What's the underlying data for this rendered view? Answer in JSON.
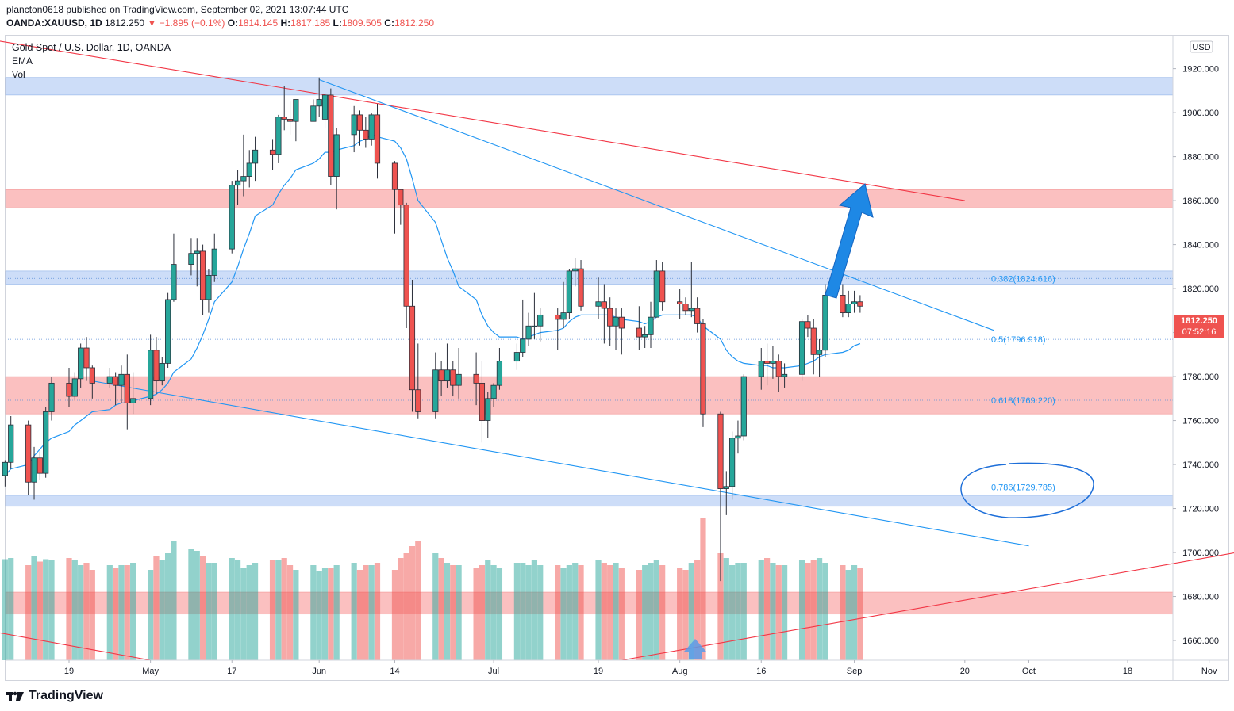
{
  "header": {
    "line1": "plancton0618 published on TradingView.com, September 02, 2021 13:07:44 UTC",
    "symbol": "OANDA:XAUUSD, 1D",
    "last": "1812.250",
    "change": "▼ −1.895 (−0.1%)",
    "o_label": "O:",
    "o": "1814.145",
    "h_label": "H:",
    "h": "1817.185",
    "l_label": "L:",
    "l": "1809.505",
    "c_label": "C:",
    "c": "1812.250"
  },
  "legend": {
    "title": "Gold Spot / U.S. Dollar, 1D, OANDA",
    "ema": "EMA",
    "vol": "Vol"
  },
  "price_tag": {
    "price": "1812.250",
    "countdown": "07:52:16"
  },
  "currency": "USD",
  "footer": {
    "brand": "TradingView"
  },
  "colors": {
    "up": "#26a69a",
    "down": "#ef5350",
    "ema": "#2196f3",
    "trend_red": "#f23645",
    "arrow": "#1e88e5"
  },
  "chart_data": {
    "type": "candlestick",
    "title": "Gold Spot / U.S. Dollar, 1D, OANDA",
    "y_axis": {
      "ticks": [
        1660,
        1680,
        1700,
        1720,
        1740,
        1760,
        1780,
        1800,
        1820,
        1840,
        1860,
        1880,
        1900,
        1920
      ],
      "tick_labels": [
        "1660.000",
        "1680.000",
        "1700.000",
        "1720.000",
        "1740.000",
        "1760.000",
        "1780.000",
        "1800.000",
        "1820.000",
        "1840.000",
        "1860.000",
        "1880.000",
        "1900.000",
        "1920.000"
      ],
      "ylim": [
        1651,
        1935
      ]
    },
    "x_axis": {
      "tick_labels": [
        "19",
        "May",
        "17",
        "Jun",
        "14",
        "Jul",
        "19",
        "Aug",
        "16",
        "Sep",
        "20",
        "Oct",
        "18",
        "Nov"
      ],
      "tick_dates": [
        "2021-04-19",
        "2021-05-03",
        "2021-05-17",
        "2021-06-01",
        "2021-06-14",
        "2021-07-01",
        "2021-07-19",
        "2021-08-02",
        "2021-08-16",
        "2021-09-01",
        "2021-09-20",
        "2021-10-01",
        "2021-10-18",
        "2021-11-01"
      ]
    },
    "candles": [
      {
        "date": "2021-04-08",
        "o": 1735,
        "h": 1742,
        "l": 1730,
        "c": 1741
      },
      {
        "date": "2021-04-09",
        "o": 1741,
        "h": 1762,
        "l": 1738,
        "c": 1758
      },
      {
        "date": "2021-04-12",
        "o": 1758,
        "h": 1760,
        "l": 1726,
        "c": 1732
      },
      {
        "date": "2021-04-13",
        "o": 1732,
        "h": 1748,
        "l": 1724,
        "c": 1743
      },
      {
        "date": "2021-04-14",
        "o": 1743,
        "h": 1746,
        "l": 1733,
        "c": 1736
      },
      {
        "date": "2021-04-15",
        "o": 1736,
        "h": 1766,
        "l": 1734,
        "c": 1764
      },
      {
        "date": "2021-04-16",
        "o": 1764,
        "h": 1780,
        "l": 1760,
        "c": 1777
      },
      {
        "date": "2021-04-19",
        "o": 1777,
        "h": 1784,
        "l": 1766,
        "c": 1771
      },
      {
        "date": "2021-04-20",
        "o": 1771,
        "h": 1782,
        "l": 1769,
        "c": 1779
      },
      {
        "date": "2021-04-21",
        "o": 1779,
        "h": 1795,
        "l": 1775,
        "c": 1793
      },
      {
        "date": "2021-04-22",
        "o": 1793,
        "h": 1798,
        "l": 1778,
        "c": 1784
      },
      {
        "date": "2021-04-23",
        "o": 1784,
        "h": 1785,
        "l": 1770,
        "c": 1777
      },
      {
        "date": "2021-04-26",
        "o": 1777,
        "h": 1784,
        "l": 1775,
        "c": 1780
      },
      {
        "date": "2021-04-27",
        "o": 1780,
        "h": 1782,
        "l": 1767,
        "c": 1776
      },
      {
        "date": "2021-04-28",
        "o": 1776,
        "h": 1785,
        "l": 1768,
        "c": 1781
      },
      {
        "date": "2021-04-29",
        "o": 1781,
        "h": 1790,
        "l": 1756,
        "c": 1768
      },
      {
        "date": "2021-04-30",
        "o": 1768,
        "h": 1782,
        "l": 1763,
        "c": 1770
      },
      {
        "date": "2021-05-03",
        "o": 1770,
        "h": 1799,
        "l": 1767,
        "c": 1792
      },
      {
        "date": "2021-05-04",
        "o": 1792,
        "h": 1798,
        "l": 1772,
        "c": 1778
      },
      {
        "date": "2021-05-05",
        "o": 1778,
        "h": 1789,
        "l": 1776,
        "c": 1786
      },
      {
        "date": "2021-05-06",
        "o": 1786,
        "h": 1818,
        "l": 1784,
        "c": 1815
      },
      {
        "date": "2021-05-07",
        "o": 1815,
        "h": 1845,
        "l": 1814,
        "c": 1831
      },
      {
        "date": "2021-05-10",
        "o": 1831,
        "h": 1843,
        "l": 1826,
        "c": 1836
      },
      {
        "date": "2021-05-11",
        "o": 1836,
        "h": 1843,
        "l": 1821,
        "c": 1837
      },
      {
        "date": "2021-05-12",
        "o": 1837,
        "h": 1840,
        "l": 1808,
        "c": 1815
      },
      {
        "date": "2021-05-13",
        "o": 1815,
        "h": 1829,
        "l": 1809,
        "c": 1826
      },
      {
        "date": "2021-05-14",
        "o": 1826,
        "h": 1845,
        "l": 1823,
        "c": 1838
      },
      {
        "date": "2021-05-17",
        "o": 1838,
        "h": 1869,
        "l": 1836,
        "c": 1867
      },
      {
        "date": "2021-05-18",
        "o": 1867,
        "h": 1874,
        "l": 1858,
        "c": 1869
      },
      {
        "date": "2021-05-19",
        "o": 1869,
        "h": 1890,
        "l": 1862,
        "c": 1871
      },
      {
        "date": "2021-05-20",
        "o": 1871,
        "h": 1883,
        "l": 1866,
        "c": 1877
      },
      {
        "date": "2021-05-21",
        "o": 1877,
        "h": 1889,
        "l": 1869,
        "c": 1883
      },
      {
        "date": "2021-05-24",
        "o": 1883,
        "h": 1888,
        "l": 1874,
        "c": 1881
      },
      {
        "date": "2021-05-25",
        "o": 1881,
        "h": 1899,
        "l": 1877,
        "c": 1898
      },
      {
        "date": "2021-05-26",
        "o": 1898,
        "h": 1912,
        "l": 1892,
        "c": 1897
      },
      {
        "date": "2021-05-27",
        "o": 1897,
        "h": 1905,
        "l": 1890,
        "c": 1896
      },
      {
        "date": "2021-05-28",
        "o": 1896,
        "h": 1905,
        "l": 1887,
        "c": 1906
      },
      {
        "date": "2021-05-31",
        "o": 1896,
        "h": 1906,
        "l": 1897,
        "c": 1903
      },
      {
        "date": "2021-06-01",
        "o": 1903,
        "h": 1916,
        "l": 1898,
        "c": 1906
      },
      {
        "date": "2021-06-02",
        "o": 1897,
        "h": 1909,
        "l": 1893,
        "c": 1908
      },
      {
        "date": "2021-06-03",
        "o": 1908,
        "h": 1911,
        "l": 1867,
        "c": 1871
      },
      {
        "date": "2021-06-04",
        "o": 1871,
        "h": 1893,
        "l": 1856,
        "c": 1890
      },
      {
        "date": "2021-06-07",
        "o": 1890,
        "h": 1903,
        "l": 1882,
        "c": 1899
      },
      {
        "date": "2021-06-08",
        "o": 1899,
        "h": 1901,
        "l": 1885,
        "c": 1892
      },
      {
        "date": "2021-06-09",
        "o": 1892,
        "h": 1898,
        "l": 1884,
        "c": 1888
      },
      {
        "date": "2021-06-10",
        "o": 1888,
        "h": 1900,
        "l": 1885,
        "c": 1899
      },
      {
        "date": "2021-06-11",
        "o": 1899,
        "h": 1904,
        "l": 1870,
        "c": 1877
      },
      {
        "date": "2021-06-14",
        "o": 1877,
        "h": 1878,
        "l": 1845,
        "c": 1865
      },
      {
        "date": "2021-06-15",
        "o": 1865,
        "h": 1865,
        "l": 1849,
        "c": 1858
      },
      {
        "date": "2021-06-16",
        "o": 1858,
        "h": 1859,
        "l": 1802,
        "c": 1812
      },
      {
        "date": "2021-06-17",
        "o": 1812,
        "h": 1824,
        "l": 1764,
        "c": 1774
      },
      {
        "date": "2021-06-18",
        "o": 1774,
        "h": 1795,
        "l": 1761,
        "c": 1764
      },
      {
        "date": "2021-06-21",
        "o": 1764,
        "h": 1791,
        "l": 1761,
        "c": 1783
      },
      {
        "date": "2021-06-22",
        "o": 1783,
        "h": 1787,
        "l": 1771,
        "c": 1778
      },
      {
        "date": "2021-06-23",
        "o": 1778,
        "h": 1795,
        "l": 1775,
        "c": 1783
      },
      {
        "date": "2021-06-24",
        "o": 1783,
        "h": 1787,
        "l": 1771,
        "c": 1776
      },
      {
        "date": "2021-06-25",
        "o": 1776,
        "h": 1793,
        "l": 1770,
        "c": 1781
      },
      {
        "date": "2021-06-28",
        "o": 1781,
        "h": 1791,
        "l": 1767,
        "c": 1777
      },
      {
        "date": "2021-06-29",
        "o": 1777,
        "h": 1787,
        "l": 1750,
        "c": 1760
      },
      {
        "date": "2021-06-30",
        "o": 1760,
        "h": 1773,
        "l": 1752,
        "c": 1770
      },
      {
        "date": "2021-07-01",
        "o": 1770,
        "h": 1777,
        "l": 1766,
        "c": 1776
      },
      {
        "date": "2021-07-02",
        "o": 1776,
        "h": 1793,
        "l": 1774,
        "c": 1787
      },
      {
        "date": "2021-07-05",
        "o": 1787,
        "h": 1795,
        "l": 1783,
        "c": 1791
      },
      {
        "date": "2021-07-06",
        "o": 1791,
        "h": 1815,
        "l": 1789,
        "c": 1797
      },
      {
        "date": "2021-07-07",
        "o": 1797,
        "h": 1809,
        "l": 1794,
        "c": 1803
      },
      {
        "date": "2021-07-08",
        "o": 1803,
        "h": 1818,
        "l": 1797,
        "c": 1803
      },
      {
        "date": "2021-07-09",
        "o": 1803,
        "h": 1811,
        "l": 1796,
        "c": 1808
      },
      {
        "date": "2021-07-12",
        "o": 1808,
        "h": 1811,
        "l": 1792,
        "c": 1806
      },
      {
        "date": "2021-07-13",
        "o": 1806,
        "h": 1823,
        "l": 1802,
        "c": 1809
      },
      {
        "date": "2021-07-14",
        "o": 1809,
        "h": 1829,
        "l": 1806,
        "c": 1828
      },
      {
        "date": "2021-07-15",
        "o": 1828,
        "h": 1834,
        "l": 1821,
        "c": 1829
      },
      {
        "date": "2021-07-16",
        "o": 1829,
        "h": 1833,
        "l": 1810,
        "c": 1812
      },
      {
        "date": "2021-07-19",
        "o": 1812,
        "h": 1825,
        "l": 1806,
        "c": 1814
      },
      {
        "date": "2021-07-20",
        "o": 1814,
        "h": 1822,
        "l": 1795,
        "c": 1811
      },
      {
        "date": "2021-07-21",
        "o": 1811,
        "h": 1816,
        "l": 1794,
        "c": 1803
      },
      {
        "date": "2021-07-22",
        "o": 1803,
        "h": 1811,
        "l": 1792,
        "c": 1807
      },
      {
        "date": "2021-07-23",
        "o": 1807,
        "h": 1811,
        "l": 1790,
        "c": 1802
      },
      {
        "date": "2021-07-26",
        "o": 1802,
        "h": 1812,
        "l": 1792,
        "c": 1798
      },
      {
        "date": "2021-07-27",
        "o": 1798,
        "h": 1803,
        "l": 1793,
        "c": 1799
      },
      {
        "date": "2021-07-28",
        "o": 1799,
        "h": 1814,
        "l": 1793,
        "c": 1807
      },
      {
        "date": "2021-07-29",
        "o": 1807,
        "h": 1833,
        "l": 1807,
        "c": 1828
      },
      {
        "date": "2021-07-30",
        "o": 1828,
        "h": 1832,
        "l": 1810,
        "c": 1814
      },
      {
        "date": "2021-08-02",
        "o": 1814,
        "h": 1820,
        "l": 1806,
        "c": 1813
      },
      {
        "date": "2021-08-03",
        "o": 1813,
        "h": 1816,
        "l": 1808,
        "c": 1810
      },
      {
        "date": "2021-08-04",
        "o": 1810,
        "h": 1832,
        "l": 1807,
        "c": 1811
      },
      {
        "date": "2021-08-05",
        "o": 1811,
        "h": 1816,
        "l": 1800,
        "c": 1804
      },
      {
        "date": "2021-08-06",
        "o": 1804,
        "h": 1806,
        "l": 1757,
        "c": 1763
      },
      {
        "date": "2021-08-09",
        "o": 1763,
        "h": 1764,
        "l": 1687,
        "c": 1729
      },
      {
        "date": "2021-08-10",
        "o": 1729,
        "h": 1737,
        "l": 1717,
        "c": 1730
      },
      {
        "date": "2021-08-11",
        "o": 1730,
        "h": 1755,
        "l": 1724,
        "c": 1752
      },
      {
        "date": "2021-08-12",
        "o": 1752,
        "h": 1760,
        "l": 1745,
        "c": 1753
      },
      {
        "date": "2021-08-13",
        "o": 1753,
        "h": 1781,
        "l": 1751,
        "c": 1780
      },
      {
        "date": "2021-08-16",
        "o": 1780,
        "h": 1793,
        "l": 1774,
        "c": 1787
      },
      {
        "date": "2021-08-17",
        "o": 1787,
        "h": 1795,
        "l": 1776,
        "c": 1786
      },
      {
        "date": "2021-08-18",
        "o": 1786,
        "h": 1794,
        "l": 1779,
        "c": 1787
      },
      {
        "date": "2021-08-19",
        "o": 1787,
        "h": 1790,
        "l": 1773,
        "c": 1780
      },
      {
        "date": "2021-08-20",
        "o": 1780,
        "h": 1786,
        "l": 1775,
        "c": 1781
      },
      {
        "date": "2021-08-23",
        "o": 1781,
        "h": 1806,
        "l": 1778,
        "c": 1805
      },
      {
        "date": "2021-08-24",
        "o": 1805,
        "h": 1808,
        "l": 1798,
        "c": 1802
      },
      {
        "date": "2021-08-25",
        "o": 1802,
        "h": 1806,
        "l": 1781,
        "c": 1790
      },
      {
        "date": "2021-08-26",
        "o": 1790,
        "h": 1797,
        "l": 1780,
        "c": 1792
      },
      {
        "date": "2021-08-27",
        "o": 1792,
        "h": 1822,
        "l": 1789,
        "c": 1817
      },
      {
        "date": "2021-08-30",
        "o": 1817,
        "h": 1822,
        "l": 1807,
        "c": 1809
      },
      {
        "date": "2021-08-31",
        "o": 1809,
        "h": 1819,
        "l": 1807,
        "c": 1813
      },
      {
        "date": "2021-09-01",
        "o": 1813,
        "h": 1819,
        "l": 1809,
        "c": 1814
      },
      {
        "date": "2021-09-02",
        "o": 1814,
        "h": 1817,
        "l": 1809,
        "c": 1812
      }
    ],
    "ema": [
      1735,
      1738,
      1740,
      1744,
      1747,
      1750,
      1752,
      1755,
      1758,
      1760,
      1762,
      1764,
      1765,
      1767,
      1768,
      1768,
      1769,
      1771,
      1772,
      1774,
      1777,
      1782,
      1788,
      1793,
      1799,
      1806,
      1814,
      1823,
      1830,
      1838,
      1845,
      1853,
      1858,
      1863,
      1867,
      1870,
      1874,
      1877,
      1879,
      1882,
      1882,
      1883,
      1885,
      1887,
      1888,
      1890,
      1889,
      1887,
      1884,
      1879,
      1870,
      1860,
      1850,
      1842,
      1834,
      1828,
      1821,
      1815,
      1808,
      1803,
      1800,
      1798,
      1798,
      1797,
      1798,
      1799,
      1800,
      1801,
      1802,
      1805,
      1807,
      1808,
      1808,
      1808,
      1808,
      1807,
      1806,
      1805,
      1804,
      1805,
      1807,
      1808,
      1808,
      1808,
      1808,
      1807,
      1803,
      1797,
      1792,
      1789,
      1787,
      1786,
      1785,
      1785,
      1784,
      1784,
      1784,
      1785,
      1786,
      1787,
      1789,
      1790,
      1791,
      1792,
      1794,
      1795,
      1797
    ],
    "volume": [
      85,
      86,
      80,
      88,
      83,
      85,
      84,
      86,
      84,
      80,
      82,
      76,
      80,
      78,
      80,
      80,
      82,
      76,
      88,
      84,
      90,
      100,
      94,
      92,
      88,
      82,
      82,
      86,
      84,
      78,
      80,
      82,
      84,
      84,
      86,
      80,
      76,
      80,
      75,
      78,
      78,
      80,
      82,
      76,
      80,
      80,
      82,
      76,
      86,
      90,
      96,
      100,
      90,
      86,
      82,
      80,
      80,
      78,
      80,
      84,
      80,
      78,
      82,
      82,
      80,
      84,
      80,
      80,
      78,
      80,
      82,
      80,
      84,
      82,
      80,
      82,
      78,
      76,
      80,
      82,
      84,
      80,
      78,
      76,
      82,
      84,
      120,
      90,
      86,
      80,
      82,
      82,
      84,
      86,
      82,
      80,
      80,
      84,
      82,
      84,
      86,
      82,
      80,
      76,
      80,
      78,
      74
    ],
    "zones": [
      {
        "kind": "resistance",
        "color": "blue",
        "from": 1908,
        "to": 1916
      },
      {
        "kind": "resistance",
        "color": "red",
        "from": 1857,
        "to": 1865
      },
      {
        "kind": "resistance",
        "color": "blue",
        "from": 1822,
        "to": 1828
      },
      {
        "kind": "support",
        "color": "red",
        "from": 1763,
        "to": 1780
      },
      {
        "kind": "support",
        "color": "blue",
        "from": 1721,
        "to": 1726
      },
      {
        "kind": "support",
        "color": "red",
        "from": 1672,
        "to": 1682
      }
    ],
    "fib_levels": [
      {
        "ratio": "0.382",
        "value": 1824.616,
        "label": "0.382(1824.616)"
      },
      {
        "ratio": "0.5",
        "value": 1796.918,
        "label": "0.5(1796.918)"
      },
      {
        "ratio": "0.618",
        "value": 1769.22,
        "label": "0.618(1769.220)"
      },
      {
        "ratio": "0.786",
        "value": 1729.785,
        "label": "0.786(1729.785)"
      }
    ],
    "trendlines": [
      {
        "color": "red",
        "from": {
          "date": "2021-04-06",
          "price": 1933
        },
        "to": {
          "date": "2021-09-20",
          "price": 1860
        }
      },
      {
        "color": "blue",
        "from": {
          "date": "2021-06-01",
          "price": 1915
        },
        "to": {
          "date": "2021-09-25",
          "price": 1801
        }
      },
      {
        "color": "blue",
        "from": {
          "date": "2021-04-23",
          "price": 1778
        },
        "to": {
          "date": "2021-10-01",
          "price": 1703
        }
      },
      {
        "color": "red",
        "from": {
          "date": "2021-07-23",
          "price": 1651
        },
        "to": {
          "date": "2021-11-10",
          "price": 1702
        }
      },
      {
        "color": "red",
        "from": {
          "date": "2021-04-06",
          "price": 1664
        },
        "to": {
          "date": "2021-05-03",
          "price": 1651
        }
      }
    ]
  }
}
